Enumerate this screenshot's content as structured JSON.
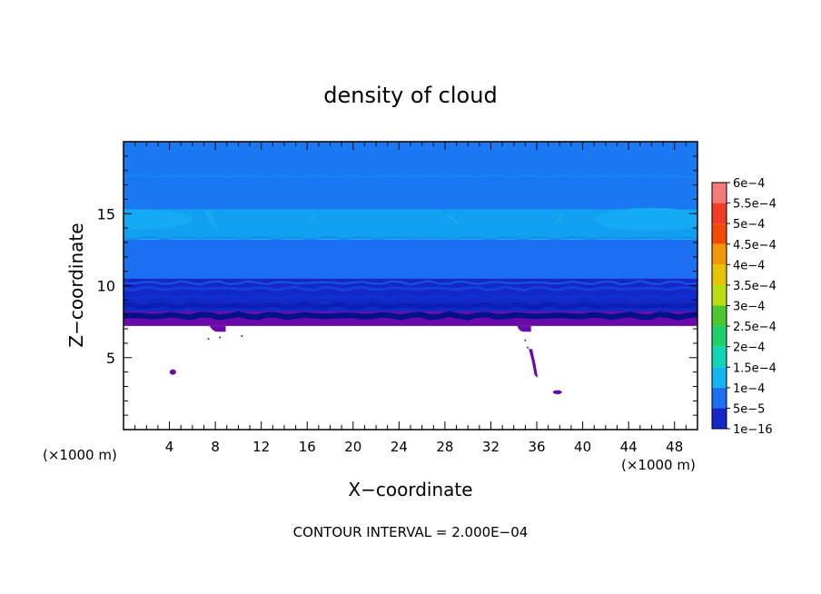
{
  "chart_data": {
    "type": "heatmap",
    "title": "density of cloud",
    "xlabel": "X−coordinate",
    "ylabel": "Z−coordinate",
    "x_unit_left": "(×1000 m)",
    "x_unit_right": "(×1000 m)",
    "footer": "CONTOUR INTERVAL = 2.000E−04",
    "xlim": [
      0,
      50
    ],
    "ylim": [
      0,
      20
    ],
    "x_ticks": [
      4,
      8,
      12,
      16,
      20,
      24,
      28,
      32,
      36,
      40,
      44,
      48
    ],
    "y_ticks": [
      5,
      10,
      15
    ],
    "grid": false,
    "colorbar": {
      "placement": "right",
      "levels": [
        "6e−4",
        "5.5e−4",
        "5e−4",
        "4.5e−4",
        "4e−4",
        "3.5e−4",
        "3e−4",
        "2.5e−4",
        "2e−4",
        "1.5e−4",
        "1e−4",
        "5e−5",
        "1e−16"
      ],
      "colors": [
        "#f47a7a",
        "#f23b28",
        "#f24b00",
        "#f4960a",
        "#e8c300",
        "#b8dd14",
        "#4cc733",
        "#1fd06a",
        "#13d3b6",
        "#11b6f0",
        "#1a70f0",
        "#1428c8",
        "#6a0aa8"
      ]
    },
    "layers": [
      {
        "zmin": 0,
        "zmax": 7.2,
        "value": "clear",
        "color": "#ffffff"
      },
      {
        "zmin": 7.2,
        "zmax": 8.2,
        "value": "1e−16",
        "color": "#6a0aa8"
      },
      {
        "zmin": 8.2,
        "zmax": 10.5,
        "value": "5e−5",
        "color": "#1428c8"
      },
      {
        "zmin": 10.5,
        "zmax": 13.2,
        "value": "1e−4",
        "color": "#1a70f0"
      },
      {
        "zmin": 13.2,
        "zmax": 15.3,
        "value": "1.5e−4",
        "color": "#11a0f0"
      },
      {
        "zmin": 15.3,
        "zmax": 20,
        "value": "1e−4",
        "color": "#1a78f2"
      }
    ],
    "features": [
      {
        "x": 4.3,
        "z": 4.0,
        "value": "1e−16"
      },
      {
        "x": 35.5,
        "z": 4.5,
        "value": "1e−16"
      },
      {
        "x": 37.8,
        "z": 2.6,
        "value": "1e−16"
      }
    ]
  }
}
